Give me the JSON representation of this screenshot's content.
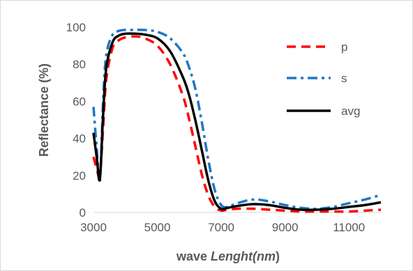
{
  "chart_data": {
    "type": "line",
    "title": "",
    "xlabel_parts": [
      {
        "text": "wave ",
        "italic": false
      },
      {
        "text": "Lenght(nm",
        "italic": true
      },
      {
        "text": ")",
        "italic": false
      }
    ],
    "ylabel": "Reflectance (%)",
    "xlim": [
      3000,
      12000
    ],
    "ylim": [
      0,
      100
    ],
    "xticks": [
      "3000",
      "5000",
      "7000",
      "9000",
      "11000"
    ],
    "yticks": [
      "0",
      "20",
      "40",
      "60",
      "80",
      "100"
    ],
    "grid": false,
    "legend_position": "right",
    "series": [
      {
        "name": "p",
        "color": "#ff0000",
        "style": "dash",
        "x": [
          3000,
          3100,
          3200,
          3300,
          3400,
          3600,
          3800,
          4000,
          4300,
          4600,
          5000,
          5400,
          5800,
          6000,
          6200,
          6400,
          6600,
          6800,
          7000,
          7200,
          7500,
          8000,
          8500,
          9000,
          9500,
          10000,
          10500,
          11000,
          11500,
          12000
        ],
        "y": [
          30,
          24,
          20,
          45,
          72,
          89,
          93,
          94.5,
          95,
          94,
          90,
          80,
          63,
          50,
          35,
          20,
          9,
          3,
          1,
          1.5,
          2,
          2,
          1.5,
          1,
          0.5,
          0.5,
          0.5,
          0.5,
          1,
          1.5
        ]
      },
      {
        "name": "s",
        "color": "#1f77c4",
        "style": "dashdot",
        "x": [
          3000,
          3100,
          3200,
          3300,
          3400,
          3600,
          3800,
          4000,
          4300,
          4600,
          5000,
          5400,
          5800,
          6000,
          6200,
          6400,
          6600,
          6800,
          7000,
          7200,
          7500,
          8000,
          8500,
          9000,
          9500,
          10000,
          10500,
          11000,
          11500,
          12000
        ],
        "y": [
          57,
          35,
          17,
          60,
          85,
          96,
          98,
          98.5,
          98.5,
          98.5,
          97.5,
          94,
          86,
          78,
          66,
          48,
          28,
          12,
          4,
          3,
          5,
          7,
          6,
          4,
          2.5,
          2,
          3,
          5,
          7,
          9.5
        ]
      },
      {
        "name": "avg",
        "color": "#000000",
        "style": "solid",
        "x": [
          3000,
          3100,
          3200,
          3300,
          3400,
          3600,
          3800,
          4000,
          4300,
          4600,
          5000,
          5400,
          5800,
          6000,
          6200,
          6400,
          6600,
          6800,
          7000,
          7200,
          7500,
          8000,
          8500,
          9000,
          9500,
          10000,
          10500,
          11000,
          11500,
          12000
        ],
        "y": [
          43,
          30,
          18,
          52,
          78,
          92,
          95.5,
          96.5,
          96.5,
          96,
          94,
          87,
          73,
          63,
          49,
          33,
          17,
          6,
          2,
          2.5,
          3.5,
          4.5,
          4,
          2.5,
          1.5,
          1.5,
          2,
          3,
          4,
          5.5
        ]
      }
    ]
  }
}
